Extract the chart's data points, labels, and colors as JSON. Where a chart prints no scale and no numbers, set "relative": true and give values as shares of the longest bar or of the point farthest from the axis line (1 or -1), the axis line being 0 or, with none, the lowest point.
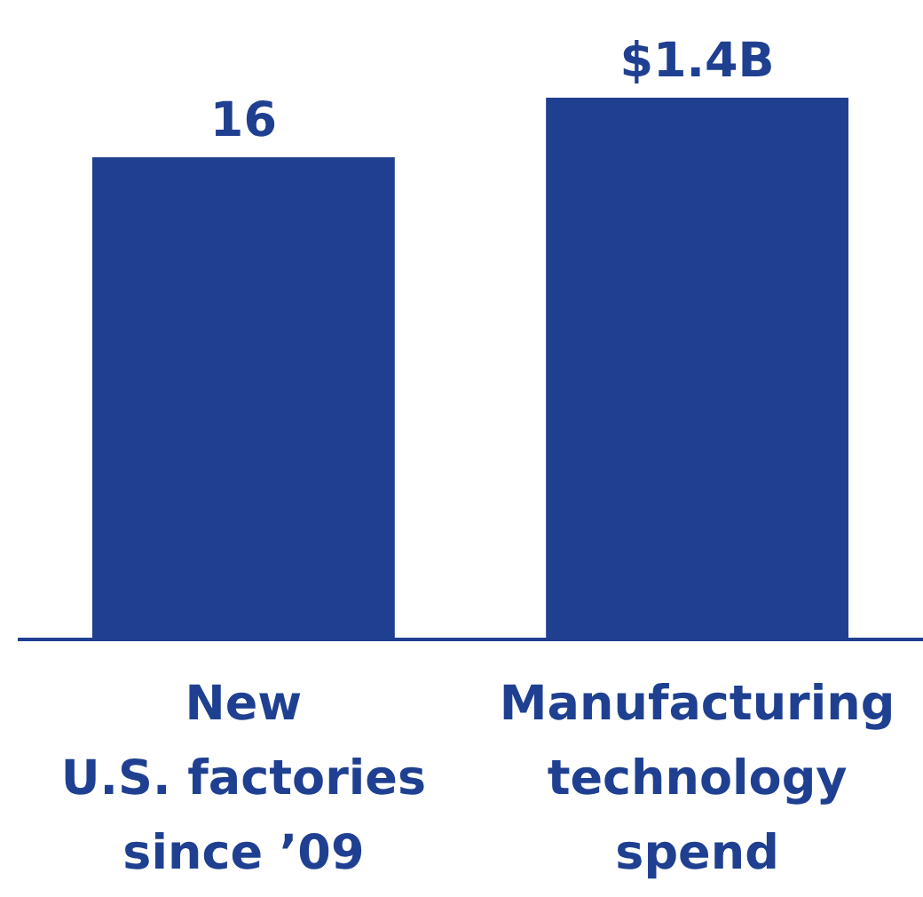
{
  "chart_data": {
    "type": "bar",
    "relative": true,
    "categories": [
      "New\nU.S. factories\nsince ’09",
      "Manufacturing\ntechnology\nspend"
    ],
    "values": [
      0.89,
      1
    ],
    "annotations": [
      {
        "text": "16",
        "x": "New\nU.S. factories\nsince ’09",
        "y": 0.89
      },
      {
        "text": "$1.4B",
        "x": "Manufacturing\ntechnology\nspend",
        "y": 1
      }
    ],
    "color": "#1f4091"
  }
}
